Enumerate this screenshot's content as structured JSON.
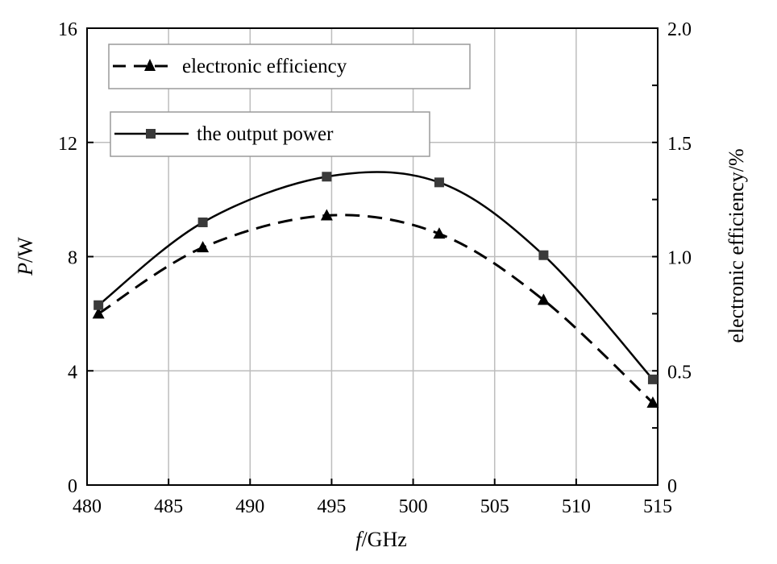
{
  "chart_data": {
    "type": "line",
    "x_axis": {
      "label_italic": "f",
      "label_rest": "/GHz",
      "range": [
        480,
        515
      ],
      "ticks": [
        "480",
        "485",
        "490",
        "495",
        "500",
        "505",
        "510",
        "515"
      ]
    },
    "y_left": {
      "label_italic": "P",
      "label_rest": "/W",
      "range": [
        0,
        16
      ],
      "ticks": [
        "0",
        "4",
        "8",
        "12",
        "16"
      ]
    },
    "y_right": {
      "label": "electronic efficiency/%",
      "range": [
        0,
        2.0
      ],
      "ticks": [
        "0",
        "0.5",
        "1.0",
        "1.5",
        "2.0"
      ]
    },
    "grid": true,
    "legend_placement": "top-left",
    "series": [
      {
        "name": "electronic efficiency",
        "axis": "right",
        "style": "dashed",
        "marker": "triangle",
        "x": [
          480.7,
          487.1,
          494.7,
          501.6,
          508.0,
          514.7
        ],
        "y": [
          0.75,
          1.04,
          1.18,
          1.1,
          0.81,
          0.36
        ]
      },
      {
        "name": "the output power",
        "axis": "left",
        "style": "solid",
        "marker": "square",
        "x": [
          480.7,
          487.1,
          494.7,
          501.6,
          508.0,
          514.7
        ],
        "y": [
          6.3,
          9.2,
          10.8,
          10.6,
          8.05,
          3.7
        ]
      }
    ],
    "colors": {
      "line": "#000000",
      "grid": "#bdbdbd",
      "marker_square": "#3a3a3a"
    }
  }
}
